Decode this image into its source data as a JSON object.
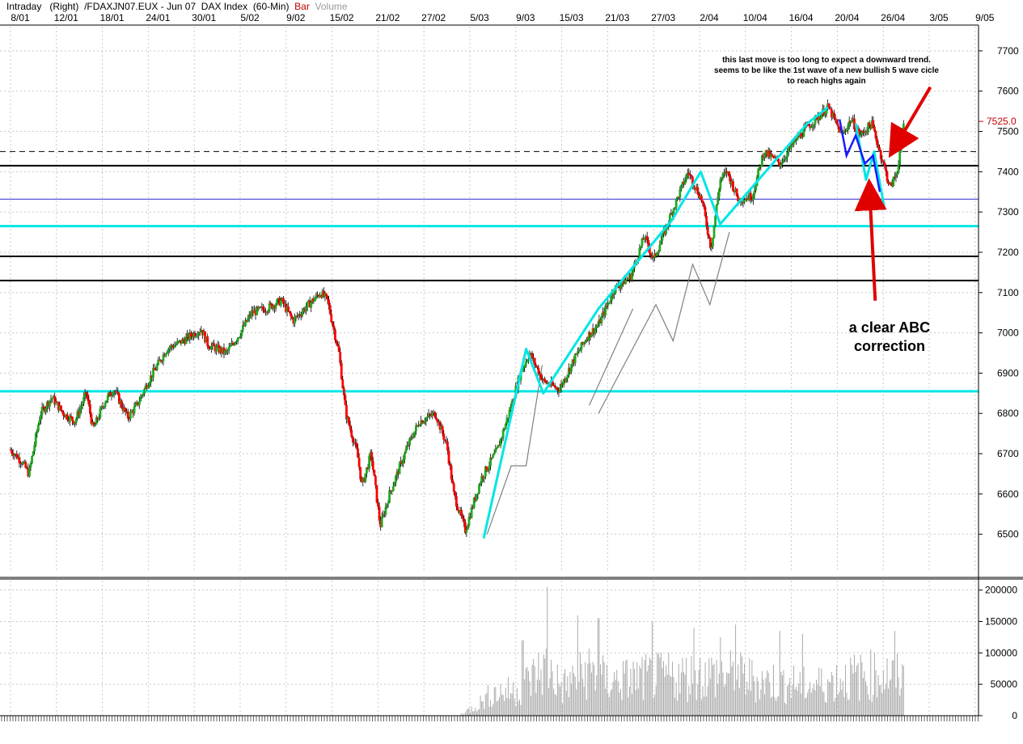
{
  "header": {
    "mode": "Intraday",
    "axis_side": "(Right)",
    "instrument": "/FDAXJN07.EUX - Jun 07  DAX Index  (60-Min)",
    "type_label": "Bar",
    "volume_label": "Volume"
  },
  "colors": {
    "candle_up": "#22aa22",
    "candle_down": "#ff0000",
    "wave_lines": "#00e5e5",
    "thin_lines": "#808080",
    "recent_wave": "#1a1aff",
    "arrows": "#e00000",
    "volume": "#aaaaaa",
    "grid": "#c8c8c8"
  },
  "chart_data": [
    {
      "type": "candlestick",
      "title": "/FDAXJN07.EUX - Jun 07 DAX Index (60-Min)",
      "x_tick_labels": [
        "8/01",
        "12/01",
        "18/01",
        "24/01",
        "30/01",
        "5/02",
        "9/02",
        "15/02",
        "21/02",
        "27/02",
        "5/03",
        "9/03",
        "15/03",
        "21/03",
        "27/03",
        "2/04",
        "10/04",
        "16/04",
        "20/04",
        "26/04",
        "3/05",
        "9/05"
      ],
      "y_tick_labels": [
        "7700",
        "7600",
        "7500",
        "7400",
        "7300",
        "7200",
        "7100",
        "7000",
        "6900",
        "6800",
        "6700",
        "6600",
        "6500"
      ],
      "ylim": [
        6405,
        7760
      ],
      "last_price_label": "7525.0",
      "last_price": 7525.0,
      "price_path": [
        {
          "x": 0.0,
          "y": 6710
        },
        {
          "x": 1.0,
          "y": 6680
        },
        {
          "x": 1.6,
          "y": 6650
        },
        {
          "x": 2.6,
          "y": 6800
        },
        {
          "x": 3.6,
          "y": 6840
        },
        {
          "x": 4.6,
          "y": 6800
        },
        {
          "x": 5.6,
          "y": 6780
        },
        {
          "x": 6.6,
          "y": 6850
        },
        {
          "x": 7.2,
          "y": 6760
        },
        {
          "x": 8.2,
          "y": 6830
        },
        {
          "x": 9.0,
          "y": 6860
        },
        {
          "x": 10.2,
          "y": 6790
        },
        {
          "x": 11.0,
          "y": 6820
        },
        {
          "x": 12.0,
          "y": 6880
        },
        {
          "x": 13.6,
          "y": 6960
        },
        {
          "x": 15.0,
          "y": 6980
        },
        {
          "x": 16.6,
          "y": 7010
        },
        {
          "x": 17.2,
          "y": 6970
        },
        {
          "x": 18.8,
          "y": 6950
        },
        {
          "x": 20.0,
          "y": 7000
        },
        {
          "x": 21.0,
          "y": 7050
        },
        {
          "x": 22.2,
          "y": 7060
        },
        {
          "x": 23.6,
          "y": 7080
        },
        {
          "x": 24.6,
          "y": 7030
        },
        {
          "x": 25.6,
          "y": 7060
        },
        {
          "x": 27.0,
          "y": 7100
        },
        {
          "x": 27.6,
          "y": 7080
        },
        {
          "x": 28.6,
          "y": 6950
        },
        {
          "x": 29.2,
          "y": 6800
        },
        {
          "x": 30.2,
          "y": 6700
        },
        {
          "x": 30.6,
          "y": 6620
        },
        {
          "x": 31.4,
          "y": 6700
        },
        {
          "x": 32.2,
          "y": 6520
        },
        {
          "x": 33.0,
          "y": 6600
        },
        {
          "x": 34.6,
          "y": 6720
        },
        {
          "x": 35.6,
          "y": 6780
        },
        {
          "x": 37.0,
          "y": 6800
        },
        {
          "x": 38.0,
          "y": 6720
        },
        {
          "x": 38.6,
          "y": 6600
        },
        {
          "x": 39.6,
          "y": 6510
        },
        {
          "x": 41.0,
          "y": 6640
        },
        {
          "x": 42.4,
          "y": 6710
        },
        {
          "x": 43.4,
          "y": 6800
        },
        {
          "x": 44.4,
          "y": 6900
        },
        {
          "x": 45.2,
          "y": 6950
        },
        {
          "x": 46.4,
          "y": 6880
        },
        {
          "x": 47.8,
          "y": 6860
        },
        {
          "x": 49.0,
          "y": 6930
        },
        {
          "x": 50.2,
          "y": 6990
        },
        {
          "x": 51.2,
          "y": 7020
        },
        {
          "x": 52.6,
          "y": 7110
        },
        {
          "x": 54.0,
          "y": 7140
        },
        {
          "x": 55.2,
          "y": 7240
        },
        {
          "x": 56.0,
          "y": 7180
        },
        {
          "x": 57.6,
          "y": 7300
        },
        {
          "x": 59.0,
          "y": 7400
        },
        {
          "x": 60.2,
          "y": 7330
        },
        {
          "x": 61.0,
          "y": 7210
        },
        {
          "x": 61.8,
          "y": 7380
        },
        {
          "x": 62.4,
          "y": 7400
        },
        {
          "x": 63.4,
          "y": 7330
        },
        {
          "x": 64.6,
          "y": 7340
        },
        {
          "x": 65.6,
          "y": 7450
        },
        {
          "x": 67.0,
          "y": 7420
        },
        {
          "x": 68.4,
          "y": 7480
        },
        {
          "x": 69.4,
          "y": 7510
        },
        {
          "x": 71.2,
          "y": 7560
        },
        {
          "x": 72.4,
          "y": 7490
        },
        {
          "x": 73.2,
          "y": 7530
        },
        {
          "x": 74.0,
          "y": 7490
        },
        {
          "x": 75.0,
          "y": 7520
        },
        {
          "x": 75.8,
          "y": 7440
        },
        {
          "x": 76.6,
          "y": 7360
        },
        {
          "x": 77.2,
          "y": 7400
        },
        {
          "x": 77.8,
          "y": 7525
        }
      ],
      "horizontal_lines": [
        {
          "y": 7450,
          "style": "dashed",
          "color": "#000000"
        },
        {
          "y": 7415,
          "style": "solid",
          "color": "#000000"
        },
        {
          "y": 7332,
          "style": "solid",
          "color": "#2a2ad0"
        },
        {
          "y": 7265,
          "style": "solid",
          "color": "#00e5e5"
        },
        {
          "y": 7190,
          "style": "solid",
          "color": "#000000"
        },
        {
          "y": 7130,
          "style": "solid",
          "color": "#000000"
        },
        {
          "y": 6855,
          "style": "solid",
          "color": "#00e5e5"
        }
      ],
      "wave_lines": [
        [
          [
            41.2,
            6490
          ],
          [
            44.9,
            6960
          ],
          [
            46.4,
            6850
          ],
          [
            51.2,
            7060
          ],
          [
            57.6,
            7280
          ],
          [
            60.1,
            7400
          ],
          [
            61.8,
            7270
          ],
          [
            69.4,
            7520
          ],
          [
            71.2,
            7560
          ]
        ],
        [
          [
            73.6,
            7520
          ],
          [
            74.5,
            7380
          ],
          [
            75.2,
            7450
          ],
          [
            76.1,
            7310
          ]
        ]
      ],
      "recent_wave": [
        [
          72.2,
          7530
        ],
        [
          72.8,
          7440
        ],
        [
          73.6,
          7490
        ],
        [
          74.4,
          7420
        ],
        [
          75.1,
          7440
        ],
        [
          75.7,
          7350
        ]
      ],
      "thin_lines": [
        [
          [
            41.5,
            6500
          ],
          [
            43.6,
            6670
          ],
          [
            44.9,
            6670
          ],
          [
            46.3,
            6920
          ]
        ],
        [
          [
            50.4,
            6820
          ],
          [
            54.2,
            7060
          ]
        ],
        [
          [
            51.2,
            6800
          ],
          [
            56.2,
            7070
          ],
          [
            57.7,
            6980
          ],
          [
            59.4,
            7170
          ],
          [
            60.9,
            7070
          ],
          [
            62.6,
            7250
          ]
        ]
      ],
      "annotations": [
        {
          "text": "this last move is too long to expect a downward trend.\nseems to be like the 1st wave of a new bullish 5 wave cicle\nto reach highs again",
          "x": 69.4,
          "y": 7650
        },
        {
          "text": "a clear ABC\ncorrection",
          "x": 75.5,
          "y": 6980
        }
      ],
      "arrows": [
        {
          "from": [
            80.1,
            7610
          ],
          "to": [
            76.9,
            7455
          ]
        },
        {
          "from": [
            75.3,
            7080
          ],
          "to": [
            74.8,
            7360
          ]
        }
      ]
    },
    {
      "type": "bar",
      "title": "Volume",
      "y_tick_labels": [
        "200000",
        "150000",
        "100000",
        "50000",
        "0"
      ],
      "ylim": [
        0,
        215000
      ],
      "volume_profile": [
        {
          "x": 0,
          "v": 0
        },
        {
          "x": 39.0,
          "v": 0
        },
        {
          "x": 40.5,
          "v": 25000
        },
        {
          "x": 42.0,
          "v": 60000
        },
        {
          "x": 44.0,
          "v": 65000
        },
        {
          "x": 46.7,
          "v": 130000
        },
        {
          "x": 48.0,
          "v": 75000
        },
        {
          "x": 50.5,
          "v": 120000
        },
        {
          "x": 52.0,
          "v": 90000
        },
        {
          "x": 55.0,
          "v": 100000
        },
        {
          "x": 59.0,
          "v": 105000
        },
        {
          "x": 62.0,
          "v": 110000
        },
        {
          "x": 66.0,
          "v": 90000
        },
        {
          "x": 70.0,
          "v": 80000
        },
        {
          "x": 73.0,
          "v": 100000
        },
        {
          "x": 76.0,
          "v": 110000
        },
        {
          "x": 78.0,
          "v": 95000
        }
      ],
      "volume_spikes": [
        {
          "x": 46.7,
          "v": 205000
        },
        {
          "x": 49.4,
          "v": 160000
        },
        {
          "x": 51.2,
          "v": 155000
        },
        {
          "x": 55.9,
          "v": 150000
        },
        {
          "x": 59.5,
          "v": 140000
        },
        {
          "x": 63.1,
          "v": 145000
        },
        {
          "x": 67.0,
          "v": 135000
        },
        {
          "x": 69.0,
          "v": 130000
        },
        {
          "x": 77.0,
          "v": 135000
        },
        {
          "x": 44.6,
          "v": 120000
        },
        {
          "x": 61.8,
          "v": 125000
        }
      ]
    }
  ]
}
